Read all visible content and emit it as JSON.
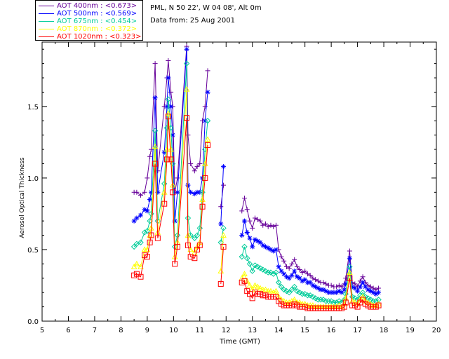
{
  "info": {
    "location": "PML, N 50 22', W 04 08', Alt 0m",
    "date": "Data from: 25 Aug 2001"
  },
  "chart_data": {
    "type": "line",
    "title": "",
    "xlabel": "Time (GMT)",
    "ylabel": "Aerosol Optical Thickness",
    "xlim": [
      5,
      20
    ],
    "ylim": [
      0,
      1.95
    ],
    "xticks": [
      5,
      6,
      7,
      8,
      9,
      10,
      11,
      12,
      13,
      14,
      15,
      16,
      17,
      18,
      19,
      20
    ],
    "yticks": [
      0.0,
      0.5,
      1.0,
      1.5
    ],
    "ytick_labels": [
      "0.0",
      "0.5",
      "1.0",
      "1.5"
    ],
    "legend_placement": "top-left outside",
    "x": [
      8.5,
      8.6,
      8.75,
      8.9,
      9.0,
      9.1,
      9.15,
      9.3,
      9.4,
      9.65,
      9.75,
      9.8,
      9.9,
      9.97,
      10.05,
      10.15,
      10.5,
      10.55,
      10.65,
      10.8,
      10.9,
      11.0,
      11.1,
      11.2,
      11.3,
      11.4,
      11.5,
      11.8,
      11.9,
      12.0,
      12.6,
      12.7,
      12.8,
      12.9,
      13.0,
      13.1,
      13.2,
      13.3,
      13.4,
      13.5,
      13.6,
      13.7,
      13.8,
      13.9,
      14.0,
      14.1,
      14.2,
      14.3,
      14.4,
      14.5,
      14.6,
      14.7,
      14.8,
      14.9,
      15.0,
      15.1,
      15.2,
      15.3,
      15.4,
      15.5,
      15.6,
      15.7,
      15.8,
      15.9,
      16.0,
      16.1,
      16.2,
      16.3,
      16.4,
      16.5,
      16.55,
      16.7,
      16.8,
      16.9,
      17.0,
      17.1,
      17.2,
      17.3,
      17.4,
      17.5,
      17.6,
      17.7,
      17.8
    ],
    "series": [
      {
        "name": "AOT  400nm : <0.673>",
        "color": "#660099",
        "marker": "plus",
        "values": [
          0.9,
          0.9,
          0.88,
          0.9,
          1.0,
          1.15,
          1.2,
          1.8,
          1.05,
          1.5,
          1.7,
          1.82,
          1.6,
          1.5,
          0.9,
          1.0,
          1.92,
          1.3,
          1.1,
          1.05,
          1.08,
          1.1,
          1.4,
          1.5,
          1.75,
          null,
          null,
          0.8,
          0.95,
          null,
          0.77,
          0.86,
          0.78,
          0.7,
          0.65,
          0.72,
          0.71,
          0.7,
          0.67,
          0.68,
          0.66,
          0.67,
          0.66,
          0.67,
          0.5,
          0.45,
          0.42,
          0.38,
          0.37,
          0.4,
          0.43,
          0.38,
          0.36,
          0.34,
          0.35,
          0.33,
          0.32,
          0.3,
          0.29,
          0.28,
          0.27,
          0.27,
          0.26,
          0.25,
          0.25,
          0.24,
          0.24,
          0.25,
          0.24,
          0.26,
          0.3,
          0.49,
          0.27,
          0.26,
          0.24,
          0.28,
          0.31,
          0.27,
          0.25,
          0.24,
          0.23,
          0.22,
          0.23
        ]
      },
      {
        "name": "AOT  500nm : <0.569>",
        "color": "#0000ff",
        "marker": "star",
        "values": [
          0.7,
          0.72,
          0.74,
          0.78,
          0.77,
          0.85,
          0.9,
          1.56,
          0.9,
          1.18,
          1.5,
          1.7,
          1.5,
          1.3,
          0.7,
          0.9,
          1.9,
          0.95,
          0.9,
          0.89,
          0.9,
          0.9,
          1.0,
          1.4,
          1.6,
          null,
          null,
          0.68,
          1.08,
          null,
          0.6,
          0.7,
          0.62,
          0.58,
          0.52,
          0.57,
          0.56,
          0.55,
          0.53,
          0.52,
          0.51,
          0.5,
          0.49,
          0.5,
          0.38,
          0.35,
          0.33,
          0.31,
          0.3,
          0.32,
          0.35,
          0.31,
          0.3,
          0.28,
          0.29,
          0.27,
          0.27,
          0.25,
          0.24,
          0.23,
          0.22,
          0.22,
          0.21,
          0.2,
          0.2,
          0.2,
          0.2,
          0.21,
          0.2,
          0.22,
          0.26,
          0.44,
          0.24,
          0.23,
          0.21,
          0.24,
          0.27,
          0.24,
          0.22,
          0.21,
          0.2,
          0.19,
          0.2
        ]
      },
      {
        "name": "AOT  675nm : <0.454>",
        "color": "#00cc99",
        "marker": "diamond",
        "values": [
          0.52,
          0.54,
          0.55,
          0.62,
          0.63,
          0.7,
          0.75,
          1.33,
          0.7,
          0.96,
          1.35,
          1.55,
          1.35,
          1.1,
          0.52,
          0.6,
          1.8,
          0.72,
          0.6,
          0.58,
          0.6,
          0.65,
          0.9,
          1.2,
          1.4,
          null,
          null,
          0.55,
          0.65,
          null,
          0.45,
          0.52,
          0.44,
          0.4,
          0.35,
          0.39,
          0.38,
          0.37,
          0.36,
          0.35,
          0.34,
          0.34,
          0.33,
          0.34,
          0.27,
          0.24,
          0.22,
          0.21,
          0.2,
          0.22,
          0.24,
          0.21,
          0.2,
          0.19,
          0.19,
          0.18,
          0.18,
          0.17,
          0.16,
          0.15,
          0.15,
          0.15,
          0.14,
          0.14,
          0.14,
          0.13,
          0.13,
          0.14,
          0.13,
          0.15,
          0.19,
          0.38,
          0.17,
          0.16,
          0.15,
          0.18,
          0.2,
          0.17,
          0.16,
          0.15,
          0.14,
          0.14,
          0.15
        ]
      },
      {
        "name": "AOT  870nm : <0.372>",
        "color": "#ffff00",
        "marker": "triangle",
        "values": [
          0.38,
          0.4,
          0.38,
          0.5,
          0.5,
          0.6,
          0.65,
          1.22,
          0.62,
          0.9,
          1.2,
          1.45,
          1.2,
          0.95,
          0.45,
          0.55,
          1.62,
          0.6,
          0.5,
          0.48,
          0.52,
          0.55,
          0.85,
          1.1,
          1.27,
          null,
          null,
          0.35,
          0.6,
          null,
          0.3,
          0.33,
          0.28,
          0.25,
          0.22,
          0.25,
          0.24,
          0.23,
          0.22,
          0.22,
          0.21,
          0.21,
          0.2,
          0.21,
          0.17,
          0.15,
          0.14,
          0.13,
          0.13,
          0.14,
          0.15,
          0.13,
          0.13,
          0.12,
          0.12,
          0.11,
          0.11,
          0.11,
          0.1,
          0.1,
          0.1,
          0.1,
          0.1,
          0.1,
          0.1,
          0.1,
          0.1,
          0.11,
          0.1,
          0.12,
          0.16,
          0.34,
          0.14,
          0.13,
          0.12,
          0.15,
          0.17,
          0.14,
          0.13,
          0.12,
          0.11,
          0.11,
          0.12
        ]
      },
      {
        "name": "AOT 1020nm : <0.323>",
        "color": "#ff0000",
        "marker": "square",
        "values": [
          0.32,
          0.33,
          0.31,
          0.46,
          0.45,
          0.55,
          0.6,
          1.1,
          0.58,
          0.82,
          1.13,
          1.43,
          1.13,
          0.9,
          0.4,
          0.52,
          1.42,
          0.53,
          0.45,
          0.44,
          0.5,
          0.53,
          0.8,
          1.0,
          1.23,
          null,
          null,
          0.26,
          0.52,
          null,
          0.27,
          0.28,
          0.21,
          0.19,
          0.16,
          0.2,
          0.19,
          0.19,
          0.18,
          0.18,
          0.17,
          0.17,
          0.17,
          0.17,
          0.14,
          0.12,
          0.11,
          0.11,
          0.11,
          0.11,
          0.12,
          0.11,
          0.1,
          0.1,
          0.1,
          0.09,
          0.09,
          0.09,
          0.09,
          0.09,
          0.09,
          0.09,
          0.09,
          0.09,
          0.09,
          0.09,
          0.09,
          0.09,
          0.09,
          0.1,
          0.13,
          0.3,
          0.11,
          0.11,
          0.1,
          0.13,
          0.15,
          0.12,
          0.11,
          0.1,
          0.1,
          0.1,
          0.11
        ]
      }
    ]
  }
}
